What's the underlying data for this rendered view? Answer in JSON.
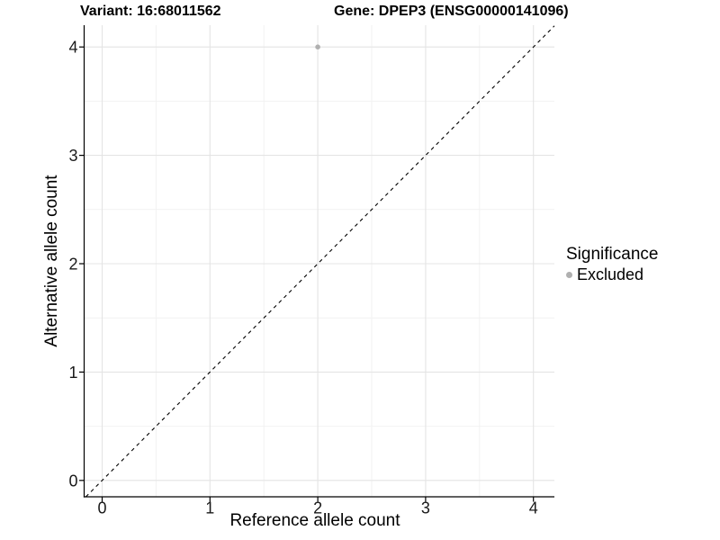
{
  "header": {
    "variant_title": "Variant: 16:68011562",
    "gene_title": "Gene: DPEP3 (ENSG00000141096)"
  },
  "chart_data": {
    "type": "scatter",
    "xlabel": "Reference allele count",
    "ylabel": "Alternative allele count",
    "xlim": [
      -0.167,
      4.186
    ],
    "ylim": [
      -0.151,
      4.2
    ],
    "x_ticks": [
      0,
      1,
      2,
      3,
      4
    ],
    "y_ticks": [
      0,
      1,
      2,
      3,
      4
    ],
    "x_minor_ticks": [
      0.5,
      1.5,
      2.5,
      3.5
    ],
    "y_minor_ticks": [
      0.5,
      1.5,
      2.5,
      3.5
    ],
    "grid": true,
    "reference_line": {
      "slope": 1,
      "intercept": 0,
      "style": "dashed",
      "color": "#000000"
    },
    "series": [
      {
        "name": "Excluded",
        "color": "#b0b0b0",
        "points": [
          {
            "x": 2,
            "y": 4
          }
        ]
      }
    ],
    "legend": {
      "title": "Significance",
      "position": "right",
      "entries": [
        {
          "label": "Excluded",
          "color": "#b0b0b0"
        }
      ]
    }
  },
  "colors": {
    "background": "#ffffff",
    "grid_major": "#e4e4e4",
    "grid_minor": "#f2f2f2",
    "axis_line": "#000000",
    "tick_label": "#1a1a1a"
  }
}
